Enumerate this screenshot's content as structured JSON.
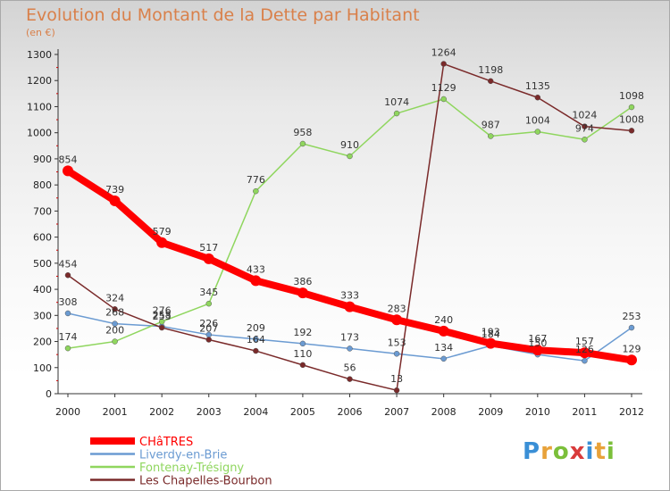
{
  "chart_data": {
    "type": "line",
    "title": "Evolution du Montant de la Dette par Habitant",
    "subtitle": "(en €)",
    "x": [
      "2000",
      "2001",
      "2002",
      "2003",
      "2004",
      "2005",
      "2006",
      "2007",
      "2008",
      "2009",
      "2010",
      "2011",
      "2012"
    ],
    "ylim": [
      0,
      1300
    ],
    "yticks": [
      0,
      100,
      200,
      300,
      400,
      500,
      600,
      700,
      800,
      900,
      1000,
      1100,
      1200,
      1300
    ],
    "grid": false,
    "legend_position": "bottom-left",
    "series": [
      {
        "name": "CHâTRES",
        "color": "#ff0000",
        "values": [
          854,
          739,
          579,
          517,
          433,
          386,
          333,
          283,
          240,
          193,
          167,
          157,
          129
        ]
      },
      {
        "name": "Liverdy-en-Brie",
        "color": "#6b9bd2",
        "values": [
          308,
          268,
          258,
          226,
          209,
          192,
          173,
          153,
          134,
          184,
          150,
          126,
          253
        ]
      },
      {
        "name": "Fontenay-Trésigny",
        "color": "#8fd65e",
        "values": [
          174,
          200,
          276,
          345,
          776,
          958,
          910,
          1074,
          1129,
          987,
          1004,
          974,
          1098
        ]
      },
      {
        "name": "Les Chapelles-Bourbon",
        "color": "#7a2a2a",
        "values": [
          454,
          324,
          253,
          207,
          164,
          110,
          56,
          13,
          1264,
          1198,
          1135,
          1024,
          1008
        ]
      }
    ]
  }
}
